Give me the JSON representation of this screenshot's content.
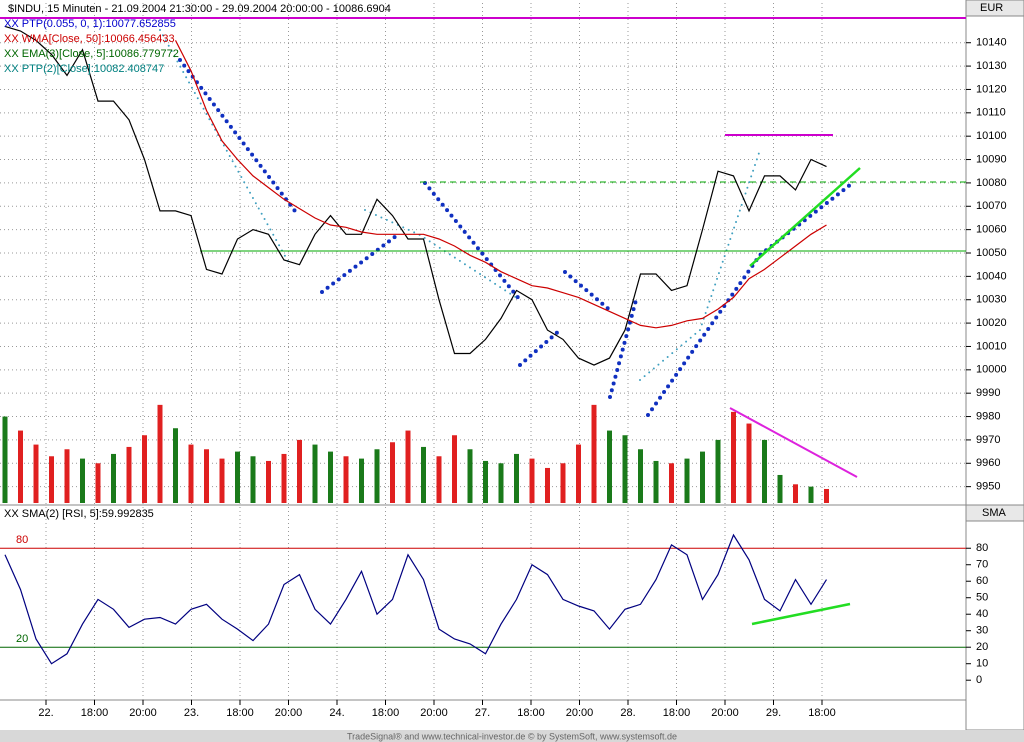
{
  "header": "$INDU, 15 Minuten - 21.09.2004 21:30:00 - 29.09.2004 20:00:00 - 10086.6904",
  "footer": "TradeSignal® and www.technical-investor.de © by SystemSoft, www.systemsoft.de",
  "chart_data": [
    {
      "type": "line",
      "unit": "EUR",
      "legend": [
        {
          "text": "XX PTP(0.055, 0, 1):10077.652855",
          "color": "#0000cc"
        },
        {
          "text": "XX WMA[Close, 50]:10066.456433",
          "color": "#cc0000"
        },
        {
          "text": "XX EMA(3)[Close, 5]:10086.779772",
          "color": "#006600"
        },
        {
          "text": "XX PTP(2)[Close]:10082.408747",
          "color": "#008080"
        }
      ],
      "ylim": [
        9943,
        10157
      ],
      "yticks": [
        9950,
        9960,
        9970,
        9980,
        9990,
        10000,
        10010,
        10020,
        10030,
        10040,
        10050,
        10060,
        10070,
        10080,
        10090,
        10100,
        10110,
        10120,
        10130,
        10140
      ],
      "grid": true,
      "series": [
        {
          "type": "bar",
          "color": "#1a7a1a",
          "down_color": "#e02020",
          "values": [
            9980,
            9974,
            9968,
            9963,
            9966,
            9962,
            9960,
            9964,
            9967,
            9972,
            9985,
            9975,
            9968,
            9966,
            9962,
            9965,
            9963,
            9961,
            9964,
            9970,
            9968,
            9965,
            9963,
            9962,
            9966,
            9969,
            9974,
            9967,
            9963,
            9972,
            9966,
            9961,
            9960,
            9964,
            9962,
            9958,
            9960,
            9968,
            9985,
            9974,
            9972,
            9966,
            9961,
            9960,
            9962,
            9965,
            9970,
            9982,
            9977,
            9970,
            9955,
            9951,
            9950,
            9949
          ]
        },
        {
          "type": "line",
          "color": "#000000",
          "values": [
            10147,
            10145,
            10141,
            10135,
            10126,
            10137,
            10115,
            10115,
            10107,
            10090,
            10068,
            10068,
            10066,
            10043,
            10041,
            10056,
            10060,
            10058,
            10047,
            10045,
            10058,
            10066,
            10058,
            10058,
            10073,
            10066,
            10056,
            10056,
            10030,
            10007,
            10007,
            10013,
            10022,
            10034,
            10030,
            10017,
            10013,
            10005,
            10002,
            10005,
            10017,
            10041,
            10041,
            10034,
            10036,
            10060,
            10085,
            10083,
            10068,
            10083,
            10083,
            10077,
            10090,
            10087
          ]
        },
        {
          "type": "line",
          "color": "#cc0000",
          "values": [
            null,
            null,
            null,
            null,
            null,
            null,
            null,
            null,
            null,
            null,
            null,
            10141,
            10128,
            10111,
            10098,
            10090,
            10083,
            10078,
            10073,
            10069,
            10065,
            10062,
            10061,
            10059,
            10058,
            10058,
            10058,
            10058,
            10056,
            10053,
            10049,
            10046,
            10042,
            10039,
            10036,
            10035,
            10033,
            10031,
            10028,
            10025,
            10022,
            10019,
            10018,
            10019,
            10021,
            10022,
            10026,
            10031,
            10039,
            10043,
            10048,
            10053,
            10058,
            10062
          ]
        }
      ]
    },
    {
      "type": "line",
      "unit": "SMA",
      "title": "XX SMA(2) [RSI, 5]:59.992835",
      "ylim": [
        -12,
        105
      ],
      "yticks": [
        0,
        10,
        20,
        30,
        40,
        50,
        60,
        70,
        80
      ],
      "levels": [
        {
          "value": 80,
          "color": "#cc0000"
        },
        {
          "value": 20,
          "color": "#006600"
        }
      ],
      "xticks": [
        "22.",
        "18:00",
        "20:00",
        "23.",
        "18:00",
        "20:00",
        "24.",
        "18:00",
        "20:00",
        "27.",
        "18:00",
        "20:00",
        "28.",
        "18:00",
        "20:00",
        "29.",
        "18:00"
      ],
      "series": [
        {
          "type": "line",
          "color": "#000080",
          "values": [
            76,
            55,
            25,
            10,
            16,
            34,
            49,
            43,
            32,
            37,
            38,
            34,
            43,
            46,
            37,
            31,
            24,
            34,
            58,
            64,
            43,
            34,
            49,
            66,
            40,
            49,
            76,
            61,
            31,
            25,
            22,
            16,
            34,
            49,
            70,
            64,
            49,
            45,
            42,
            31,
            43,
            46,
            61,
            82,
            76,
            49,
            64,
            88,
            73,
            49,
            42,
            61,
            46,
            61
          ]
        }
      ]
    }
  ]
}
